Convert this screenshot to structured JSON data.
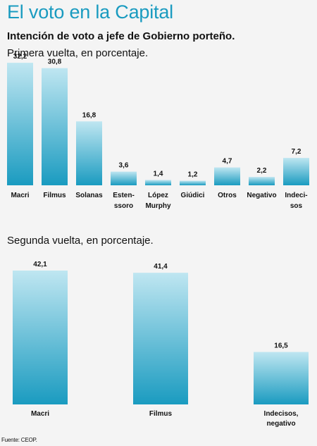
{
  "header": {
    "title": "El voto en la Capital",
    "subtitle": "Intención de voto a jefe de Gobierno porteño."
  },
  "footer": {
    "source": "Fuente: CEOP."
  },
  "chart_data": [
    {
      "type": "bar",
      "title": "Primera vuelta, en porcentaje.",
      "categories": [
        "Macri",
        "Filmus",
        "Solanas",
        "Esten-\nssoro",
        "López\nMurphy",
        "Giúdici",
        "Otros",
        "Negativo",
        "Indeci-\nsos"
      ],
      "values": [
        32.2,
        30.8,
        16.8,
        3.6,
        1.4,
        1.2,
        4.7,
        2.2,
        7.2
      ],
      "value_labels": [
        "32,2",
        "30,8",
        "16,8",
        "3,6",
        "1,4",
        "1,2",
        "4,7",
        "2,2",
        "7,2"
      ],
      "xlabel": "",
      "ylabel": "",
      "grid": false,
      "colors": {
        "bar_top": "#bfe6f1",
        "bar_bottom": "#1a9bc0"
      }
    },
    {
      "type": "bar",
      "title": "Segunda vuelta, en porcentaje.",
      "categories": [
        "Macri",
        "Filmus",
        "Indecisos,\nnegativo"
      ],
      "values": [
        42.1,
        41.4,
        16.5
      ],
      "value_labels": [
        "42,1",
        "41,4",
        "16,5"
      ],
      "xlabel": "",
      "ylabel": "",
      "grid": false,
      "colors": {
        "bar_top": "#bfe6f1",
        "bar_bottom": "#1a9bc0"
      }
    }
  ]
}
